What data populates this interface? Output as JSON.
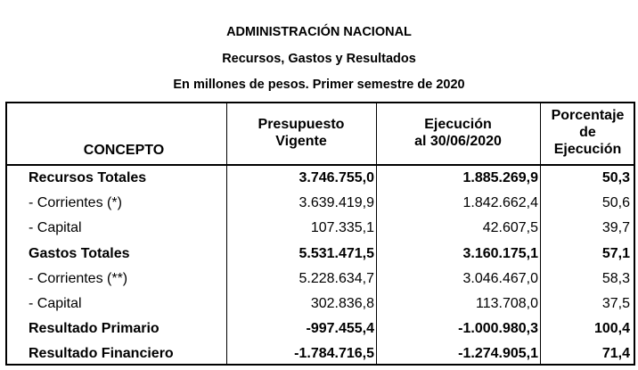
{
  "header": {
    "title": "ADMINISTRACIÓN NACIONAL",
    "subtitle": "Recursos, Gastos y Resultados",
    "units": "En millones de pesos. Primer semestre de 2020"
  },
  "table": {
    "columns": {
      "concepto": "CONCEPTO",
      "presupuesto_line1": "Presupuesto",
      "presupuesto_line2": "Vigente",
      "ejecucion_line1": "Ejecución",
      "ejecucion_line2": "al 30/06/2020",
      "porcentaje_line1": "Porcentaje",
      "porcentaje_line2": "de",
      "porcentaje_line3": "Ejecución"
    },
    "rows": [
      {
        "concepto": "Recursos Totales",
        "presupuesto": "3.746.755,0",
        "ejecucion": "1.885.269,9",
        "porcentaje": "50,3",
        "bold": true
      },
      {
        "concepto": "- Corrientes (*)",
        "presupuesto": "3.639.419,9",
        "ejecucion": "1.842.662,4",
        "porcentaje": "50,6",
        "bold": false
      },
      {
        "concepto": "- Capital",
        "presupuesto": "107.335,1",
        "ejecucion": "42.607,5",
        "porcentaje": "39,7",
        "bold": false
      },
      {
        "concepto": "Gastos Totales",
        "presupuesto": "5.531.471,5",
        "ejecucion": "3.160.175,1",
        "porcentaje": "57,1",
        "bold": true
      },
      {
        "concepto": "- Corrientes (**)",
        "presupuesto": "5.228.634,7",
        "ejecucion": "3.046.467,0",
        "porcentaje": "58,3",
        "bold": false
      },
      {
        "concepto": "- Capital",
        "presupuesto": "302.836,8",
        "ejecucion": "113.708,0",
        "porcentaje": "37,5",
        "bold": false
      },
      {
        "concepto": "Resultado Primario",
        "presupuesto": "-997.455,4",
        "ejecucion": "-1.000.980,3",
        "porcentaje": "100,4",
        "bold": true
      },
      {
        "concepto": "Resultado Financiero",
        "presupuesto": "-1.784.716,5",
        "ejecucion": "-1.274.905,1",
        "porcentaje": "71,4",
        "bold": true
      }
    ]
  }
}
